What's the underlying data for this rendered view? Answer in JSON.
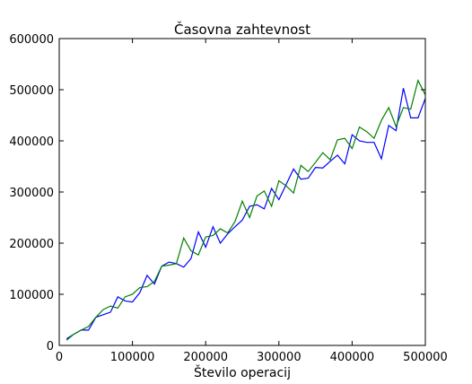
{
  "chart_data": {
    "type": "line",
    "title": "Časovna zahtevnost",
    "xlabel": "Število operacij",
    "ylabel": "",
    "xlim": [
      0,
      500000
    ],
    "ylim": [
      0,
      600000
    ],
    "grid": false,
    "xticks": [
      0,
      100000,
      200000,
      300000,
      400000,
      500000
    ],
    "xtick_labels": [
      "0",
      "100000",
      "200000",
      "300000",
      "400000",
      "500000"
    ],
    "yticks": [
      0,
      100000,
      200000,
      300000,
      400000,
      500000,
      600000
    ],
    "ytick_labels": [
      "0",
      "100000",
      "200000",
      "300000",
      "400000",
      "500000",
      "600000"
    ],
    "x": [
      10000,
      20000,
      30000,
      40000,
      50000,
      60000,
      70000,
      80000,
      90000,
      100000,
      110000,
      120000,
      130000,
      140000,
      150000,
      160000,
      170000,
      180000,
      190000,
      200000,
      210000,
      220000,
      230000,
      240000,
      250000,
      260000,
      270000,
      280000,
      290000,
      300000,
      310000,
      320000,
      330000,
      340000,
      350000,
      360000,
      370000,
      380000,
      390000,
      400000,
      410000,
      420000,
      430000,
      440000,
      450000,
      460000,
      470000,
      480000,
      490000,
      500000
    ],
    "series": [
      {
        "color": "#0000ff",
        "values": [
          13000,
          22000,
          30000,
          30000,
          55000,
          60000,
          65000,
          95000,
          87000,
          85000,
          103000,
          137000,
          120000,
          155000,
          163000,
          160000,
          153000,
          170000,
          222000,
          192000,
          232000,
          200000,
          218000,
          232000,
          245000,
          272000,
          275000,
          267000,
          307000,
          285000,
          315000,
          345000,
          325000,
          327000,
          348000,
          347000,
          360000,
          372000,
          355000,
          412000,
          400000,
          397000,
          397000,
          365000,
          430000,
          420000,
          503000,
          445000,
          445000,
          483000
        ]
      },
      {
        "color": "#008000",
        "values": [
          10000,
          22000,
          30000,
          37000,
          55000,
          70000,
          77000,
          73000,
          95000,
          100000,
          113000,
          115000,
          125000,
          155000,
          157000,
          160000,
          210000,
          185000,
          177000,
          212000,
          215000,
          228000,
          220000,
          242000,
          282000,
          250000,
          292000,
          302000,
          272000,
          322000,
          312000,
          298000,
          352000,
          340000,
          358000,
          377000,
          363000,
          402000,
          405000,
          385000,
          427000,
          418000,
          405000,
          440000,
          465000,
          428000,
          465000,
          462000,
          518000,
          490000
        ]
      }
    ]
  }
}
